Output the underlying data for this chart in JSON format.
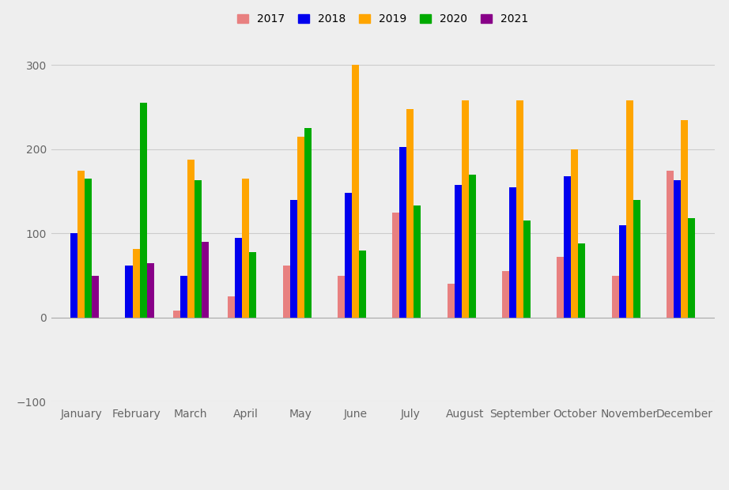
{
  "months": [
    "January",
    "February",
    "March",
    "April",
    "May",
    "June",
    "July",
    "August",
    "September",
    "October",
    "November",
    "December"
  ],
  "series": {
    "2017": [
      null,
      null,
      8,
      25,
      62,
      50,
      125,
      40,
      55,
      72,
      50,
      175
    ],
    "2018": [
      100,
      62,
      50,
      95,
      140,
      148,
      203,
      158,
      155,
      168,
      110,
      163
    ],
    "2019": [
      175,
      82,
      188,
      165,
      215,
      300,
      248,
      258,
      258,
      200,
      258,
      235
    ],
    "2020": [
      165,
      255,
      163,
      78,
      225,
      80,
      133,
      170,
      115,
      88,
      140,
      118
    ],
    "2021": [
      50,
      65,
      90,
      null,
      null,
      null,
      null,
      null,
      null,
      null,
      null,
      null
    ]
  },
  "colors": {
    "2017": "#e88080",
    "2018": "#0000ee",
    "2019": "#ffa500",
    "2020": "#00aa00",
    "2021": "#880088"
  },
  "ylim": [
    -100,
    325
  ],
  "yticks": [
    -100,
    0,
    100,
    200,
    300
  ],
  "bar_width": 0.13,
  "background_color": "#eeeeee",
  "grid_color": "#cccccc",
  "legend_labels": [
    "2017",
    "2018",
    "2019",
    "2020",
    "2021"
  ]
}
